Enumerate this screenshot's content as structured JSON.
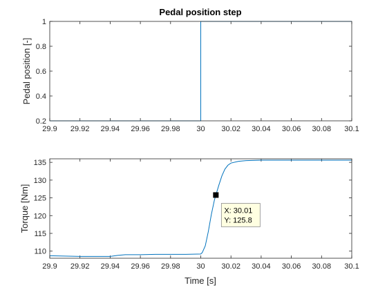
{
  "colors": {
    "line": "#0072bd",
    "axes": "#262626",
    "grid": "#e6e6e6",
    "datatip_bg": "#ffffe1",
    "datatip_border": "#8c8c8c"
  },
  "chart_data": [
    {
      "type": "line",
      "title": "Pedal position step",
      "xlabel": "",
      "ylabel": "Pedal position [-]",
      "xlim": [
        29.9,
        30.1
      ],
      "ylim": [
        0.2,
        1
      ],
      "xticks": [
        "29.9",
        "29.92",
        "29.94",
        "29.96",
        "29.98",
        "30",
        "30.02",
        "30.04",
        "30.06",
        "30.08",
        "30.1"
      ],
      "yticks": [
        "0.2",
        "0.4",
        "0.6",
        "0.8",
        "1"
      ],
      "grid": false,
      "series": [
        {
          "x": [
            29.9,
            30.0,
            30.0,
            30.1
          ],
          "y": [
            0.2,
            0.2,
            1.0,
            1.0
          ]
        }
      ]
    },
    {
      "type": "line",
      "title": "",
      "xlabel": "Time [s]",
      "ylabel": "Torque [Nm]",
      "xlim": [
        29.9,
        30.1
      ],
      "ylim": [
        108,
        136
      ],
      "xticks": [
        "29.9",
        "29.92",
        "29.94",
        "29.96",
        "29.98",
        "30",
        "30.02",
        "30.04",
        "30.06",
        "30.08",
        "30.1"
      ],
      "yticks": [
        "110",
        "115",
        "120",
        "125",
        "130",
        "135"
      ],
      "grid": false,
      "series": [
        {
          "x": [
            29.9,
            29.91,
            29.92,
            29.93,
            29.94,
            29.945,
            29.95,
            29.96,
            29.97,
            29.98,
            29.99,
            30.0,
            30.001,
            30.003,
            30.005,
            30.007,
            30.009,
            30.01,
            30.012,
            30.014,
            30.016,
            30.018,
            30.02,
            30.025,
            30.03,
            30.04,
            30.06,
            30.08,
            30.1
          ],
          "y": [
            108.7,
            108.6,
            108.5,
            108.5,
            108.5,
            108.8,
            109.0,
            109.0,
            109.1,
            109.1,
            109.1,
            109.2,
            109.6,
            111.5,
            115.5,
            120.3,
            124.3,
            125.8,
            128.6,
            131.2,
            133.1,
            134.2,
            134.8,
            135.3,
            135.5,
            135.6,
            135.6,
            135.6,
            135.6
          ]
        }
      ],
      "datatip": {
        "x": 30.01,
        "y": 125.8,
        "x_text": "X: 30.01",
        "y_text": "Y: 125.8"
      }
    }
  ]
}
